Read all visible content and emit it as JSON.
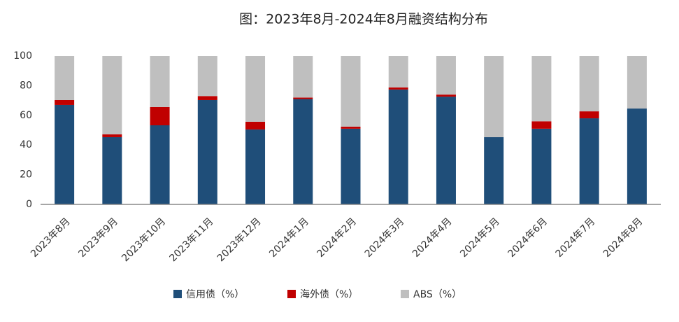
{
  "chart_data": {
    "type": "stacked_bar",
    "title": "图：2023年8月-2024年8月融资结构分布",
    "categories": [
      "2023年8月",
      "2023年9月",
      "2023年10月",
      "2023年11月",
      "2023年12月",
      "2024年1月",
      "2024年2月",
      "2024年3月",
      "2024年4月",
      "2024年5月",
      "2024年6月",
      "2024年7月",
      "2024年8月"
    ],
    "series": [
      {
        "name": "信用债（%）",
        "color": "#1f4e79",
        "values": [
          67,
          45.3,
          53.3,
          70.3,
          50.5,
          71,
          51,
          77.4,
          72.6,
          45.3,
          51,
          58,
          64.6
        ]
      },
      {
        "name": "海外债（%）",
        "color": "#c00000",
        "values": [
          3.3,
          1.9,
          12.3,
          2.7,
          5.2,
          1,
          1.4,
          1.4,
          1.4,
          0,
          5,
          4.7,
          0
        ]
      },
      {
        "name": "ABS（%）",
        "color": "#bfbfbf",
        "values": [
          29.7,
          52.8,
          34.4,
          27,
          44.3,
          28,
          47.6,
          21.2,
          26,
          54.7,
          44,
          37.3,
          35.4
        ]
      }
    ],
    "ylim": [
      0,
      100
    ],
    "yticks": [
      0,
      20,
      40,
      60,
      80,
      100
    ],
    "grid": false,
    "legend": "bottom"
  }
}
